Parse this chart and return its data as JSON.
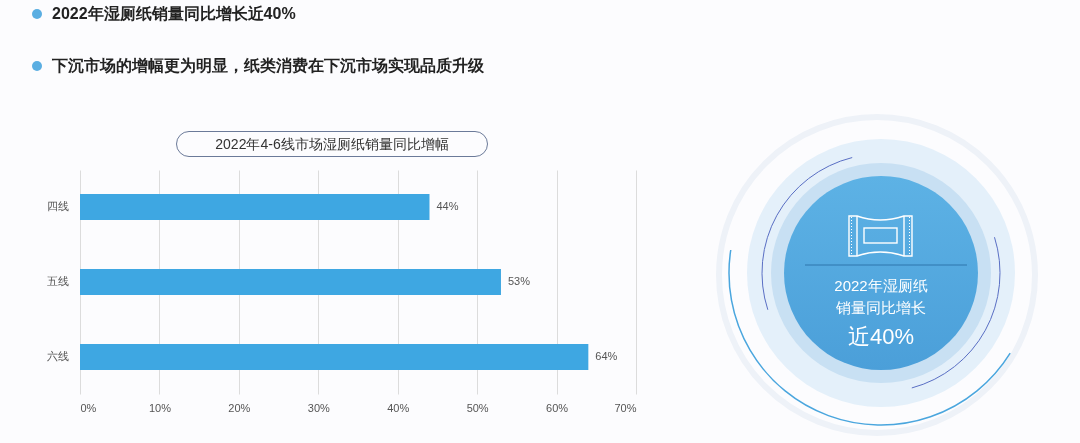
{
  "chart_data": {
    "type": "bar",
    "orientation": "horizontal",
    "title": "2022年4-6线市场湿厕纸销量同比增幅",
    "categories": [
      "四线",
      "五线",
      "六线"
    ],
    "values": [
      44,
      53,
      64
    ],
    "value_labels": [
      "44%",
      "53%",
      "64%"
    ],
    "color": "#3ea7e2",
    "xlim": [
      0,
      70
    ],
    "xticks": [
      {
        "value": 0,
        "label": "0%"
      },
      {
        "value": 10,
        "label": "10%"
      },
      {
        "value": 20,
        "label": "20%"
      },
      {
        "value": 30,
        "label": "30%"
      },
      {
        "value": 40,
        "label": "40%"
      },
      {
        "value": 50,
        "label": "50%"
      },
      {
        "value": 60,
        "label": "60%"
      },
      {
        "value": 70,
        "label": "70%"
      }
    ],
    "grid": "x",
    "annotations": [
      "2022年湿厕纸销量同比增长近40%",
      "下沉市场的增幅更为明显，纸类消费在下沉市场实现品质升级",
      "2022年湿厕纸销量同比增长",
      "近40%"
    ]
  }
}
